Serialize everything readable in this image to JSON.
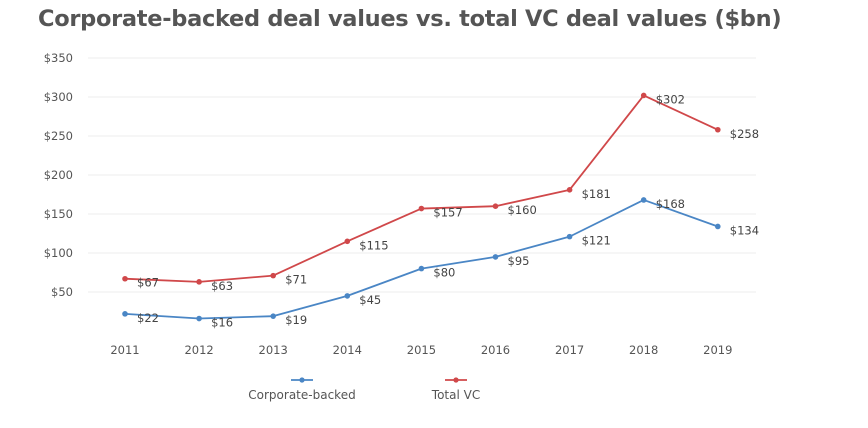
{
  "chart_data": {
    "type": "line",
    "title": "Corporate-backed deal values vs. total VC deal values ($bn)",
    "xlabel": "",
    "ylabel": "",
    "x": [
      "2011",
      "2012",
      "2013",
      "2014",
      "2015",
      "2016",
      "2017",
      "2018",
      "2019"
    ],
    "ylim": [
      0,
      350
    ],
    "yticks": [
      50,
      100,
      150,
      200,
      250,
      300,
      350
    ],
    "ytick_labels": [
      "$50",
      "$100",
      "$150",
      "$200",
      "$250",
      "$300",
      "$350"
    ],
    "grid": true,
    "legend_position": "bottom",
    "series": [
      {
        "name": "Corporate-backed",
        "color": "#4a86c5",
        "values": [
          22,
          16,
          19,
          45,
          80,
          95,
          121,
          168,
          134
        ],
        "labels": [
          "$22",
          "$16",
          "$19",
          "$45",
          "$80",
          "$95",
          "$121",
          "$168",
          "$134"
        ]
      },
      {
        "name": "Total VC",
        "color": "#d0484a",
        "values": [
          67,
          63,
          71,
          115,
          157,
          160,
          181,
          302,
          258
        ],
        "labels": [
          "$67",
          "$63",
          "$71",
          "$115",
          "$157",
          "$160",
          "$181",
          "$302",
          "$258"
        ]
      }
    ]
  }
}
